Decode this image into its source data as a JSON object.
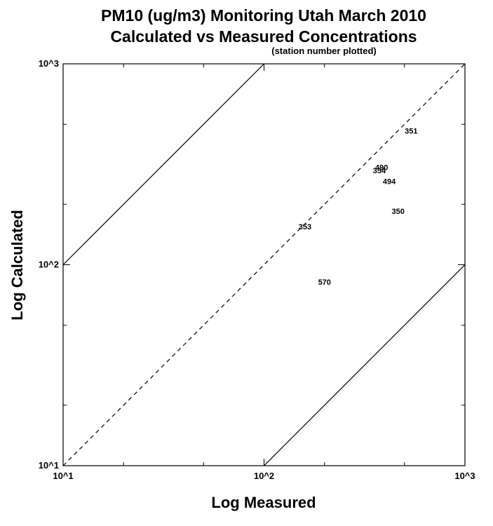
{
  "chart_data": {
    "type": "scatter",
    "title": "PM10 (ug/m3) Monitoring Utah March 2010",
    "title_line2": "Calculated vs Measured Concentrations",
    "subtitle": "(station number plotted)",
    "xlabel": "Log Measured",
    "ylabel": "Log Calculated",
    "xscale": "log",
    "yscale": "log",
    "xlim": [
      10,
      1000
    ],
    "ylim": [
      10,
      1000
    ],
    "x_tick_labels": [
      "10^1",
      "10^2",
      "10^3"
    ],
    "y_tick_labels": [
      "10^1",
      "10^2",
      "10^3"
    ],
    "grid": false,
    "reference_lines": [
      {
        "name": "1:1",
        "style": "dashed",
        "factor": 1
      },
      {
        "name": "factor of 10 over",
        "style": "solid",
        "factor": 10
      },
      {
        "name": "factor of 10 under",
        "style": "solid",
        "factor": 0.1
      }
    ],
    "points": [
      {
        "label": "351",
        "x": 540,
        "y": 465
      },
      {
        "label": "490",
        "x": 385,
        "y": 305
      },
      {
        "label": "354",
        "x": 375,
        "y": 295
      },
      {
        "label": "494",
        "x": 420,
        "y": 260
      },
      {
        "label": "350",
        "x": 465,
        "y": 185
      },
      {
        "label": "353",
        "x": 160,
        "y": 155
      },
      {
        "label": "570",
        "x": 200,
        "y": 82
      }
    ]
  }
}
